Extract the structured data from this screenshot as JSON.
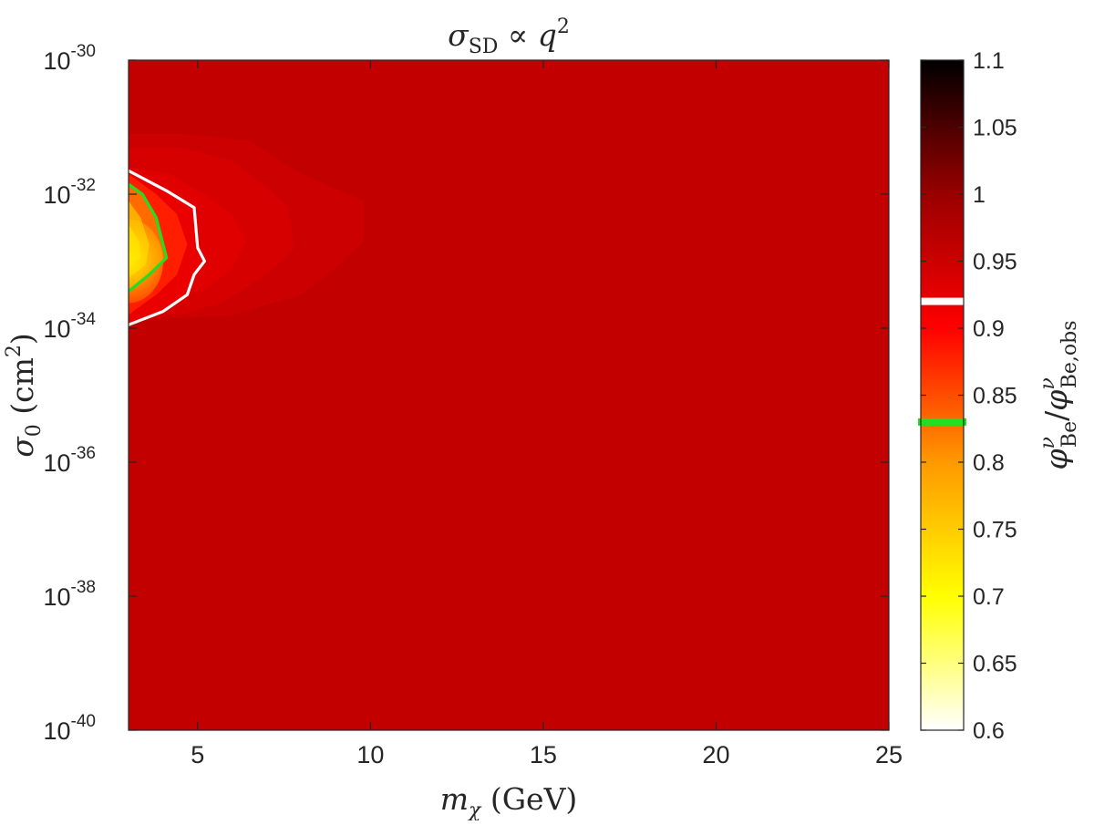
{
  "chart_data": {
    "type": "contour",
    "title": {
      "sigma": "σ",
      "sub": "SD",
      "rest": " ∝ q",
      "sup": "2"
    },
    "xlabel": {
      "m": "m",
      "sub": "χ",
      "unit": "(GeV)"
    },
    "ylabel": {
      "sigma": "σ",
      "sub": "0",
      "unit": "(cm",
      "sup": "2",
      "close": ")"
    },
    "colorbar_label": {
      "num": "φ",
      "num_sup": "ν",
      "num_sub": "Be",
      "slash": "/",
      "den": "φ",
      "den_sup": "ν",
      "den_sub": "Be,obs"
    },
    "x_axis": {
      "scale": "linear",
      "lim": [
        3,
        25
      ],
      "ticks": [
        5,
        10,
        15,
        20,
        25
      ],
      "tick_labels": [
        "5",
        "10",
        "15",
        "20",
        "25"
      ]
    },
    "y_axis": {
      "scale": "log",
      "lim_exponent": [
        -40,
        -30
      ],
      "ticks_exponent": [
        -40,
        -38,
        -36,
        -34,
        -32,
        -30
      ],
      "tick_base": "10",
      "tick_exponents": [
        "-40",
        "-38",
        "-36",
        "-34",
        "-32",
        "-30"
      ]
    },
    "colorbar": {
      "lim": [
        0.6,
        1.1
      ],
      "ticks": [
        0.6,
        0.65,
        0.7,
        0.75,
        0.8,
        0.85,
        0.9,
        0.95,
        1,
        1.05,
        1.1
      ],
      "tick_labels": [
        "0.6",
        "0.65",
        "0.7",
        "0.75",
        "0.8",
        "0.85",
        "0.9",
        "0.95",
        "1",
        "1.05",
        "1.1"
      ],
      "colormap": "hot (reversed)",
      "colors": [
        "#ffffff",
        "#ffff00",
        "#ff9900",
        "#ff0000",
        "#990000",
        "#000000"
      ]
    },
    "background_value": 0.96,
    "minimum": {
      "m_GeV": 3,
      "log10_sigma": -33.0,
      "value": 0.72
    },
    "contour_levels": [
      {
        "value": 0.92,
        "color": "#ffffff"
      },
      {
        "value": 0.83,
        "color": "#22dd22"
      }
    ],
    "filled_regions": [
      {
        "value": 0.95,
        "boundary": [
          [
            3,
            -31.1
          ],
          [
            4.5,
            -31.1
          ],
          [
            6.5,
            -31.2
          ],
          [
            8.0,
            -31.7
          ],
          [
            9.8,
            -32.1
          ],
          [
            9.8,
            -32.7
          ],
          [
            9.0,
            -33.1
          ],
          [
            8.0,
            -33.5
          ],
          [
            6.0,
            -33.8
          ],
          [
            3,
            -33.9
          ]
        ]
      },
      {
        "value": 0.94,
        "boundary": [
          [
            3,
            -31.3
          ],
          [
            4.5,
            -31.3
          ],
          [
            6.0,
            -31.5
          ],
          [
            7.0,
            -31.9
          ],
          [
            7.6,
            -32.2
          ],
          [
            7.8,
            -32.8
          ],
          [
            7.0,
            -33.2
          ],
          [
            5.8,
            -33.6
          ],
          [
            4.5,
            -33.8
          ],
          [
            3,
            -33.8
          ]
        ]
      },
      {
        "value": 0.93,
        "boundary": [
          [
            3,
            -31.6
          ],
          [
            4.2,
            -31.7
          ],
          [
            5.2,
            -32.0
          ],
          [
            6.0,
            -32.3
          ],
          [
            6.4,
            -32.7
          ],
          [
            6.0,
            -33.1
          ],
          [
            5.3,
            -33.4
          ],
          [
            4.4,
            -33.6
          ],
          [
            3,
            -33.7
          ]
        ]
      },
      {
        "value": 0.92,
        "boundary": [
          [
            3,
            -31.65
          ],
          [
            4.1,
            -31.95
          ],
          [
            4.9,
            -32.2
          ],
          [
            5.0,
            -32.8
          ],
          [
            5.2,
            -33.0
          ],
          [
            4.9,
            -33.2
          ],
          [
            4.7,
            -33.5
          ],
          [
            4.0,
            -33.75
          ],
          [
            3,
            -33.95
          ]
        ]
      },
      {
        "value": 0.88,
        "boundary": [
          [
            3,
            -31.7
          ],
          [
            3.8,
            -32.0
          ],
          [
            4.4,
            -32.3
          ],
          [
            4.7,
            -32.75
          ],
          [
            4.4,
            -33.2
          ],
          [
            3.8,
            -33.5
          ],
          [
            3,
            -33.8
          ]
        ]
      },
      {
        "value": 0.83,
        "boundary": [
          [
            3,
            -31.85
          ],
          [
            3.4,
            -32.0
          ],
          [
            3.8,
            -32.35
          ],
          [
            4.1,
            -32.95
          ],
          [
            3.6,
            -33.2
          ],
          [
            3,
            -33.45
          ]
        ]
      },
      {
        "value": 0.78,
        "boundary": [
          [
            3,
            -32.1
          ],
          [
            3.35,
            -32.35
          ],
          [
            3.6,
            -32.75
          ],
          [
            3.5,
            -33.05
          ],
          [
            3,
            -33.25
          ]
        ]
      },
      {
        "value": 0.74,
        "boundary": [
          [
            3,
            -32.45
          ],
          [
            3.3,
            -32.7
          ],
          [
            3.35,
            -32.95
          ],
          [
            3,
            -33.1
          ]
        ]
      }
    ]
  }
}
